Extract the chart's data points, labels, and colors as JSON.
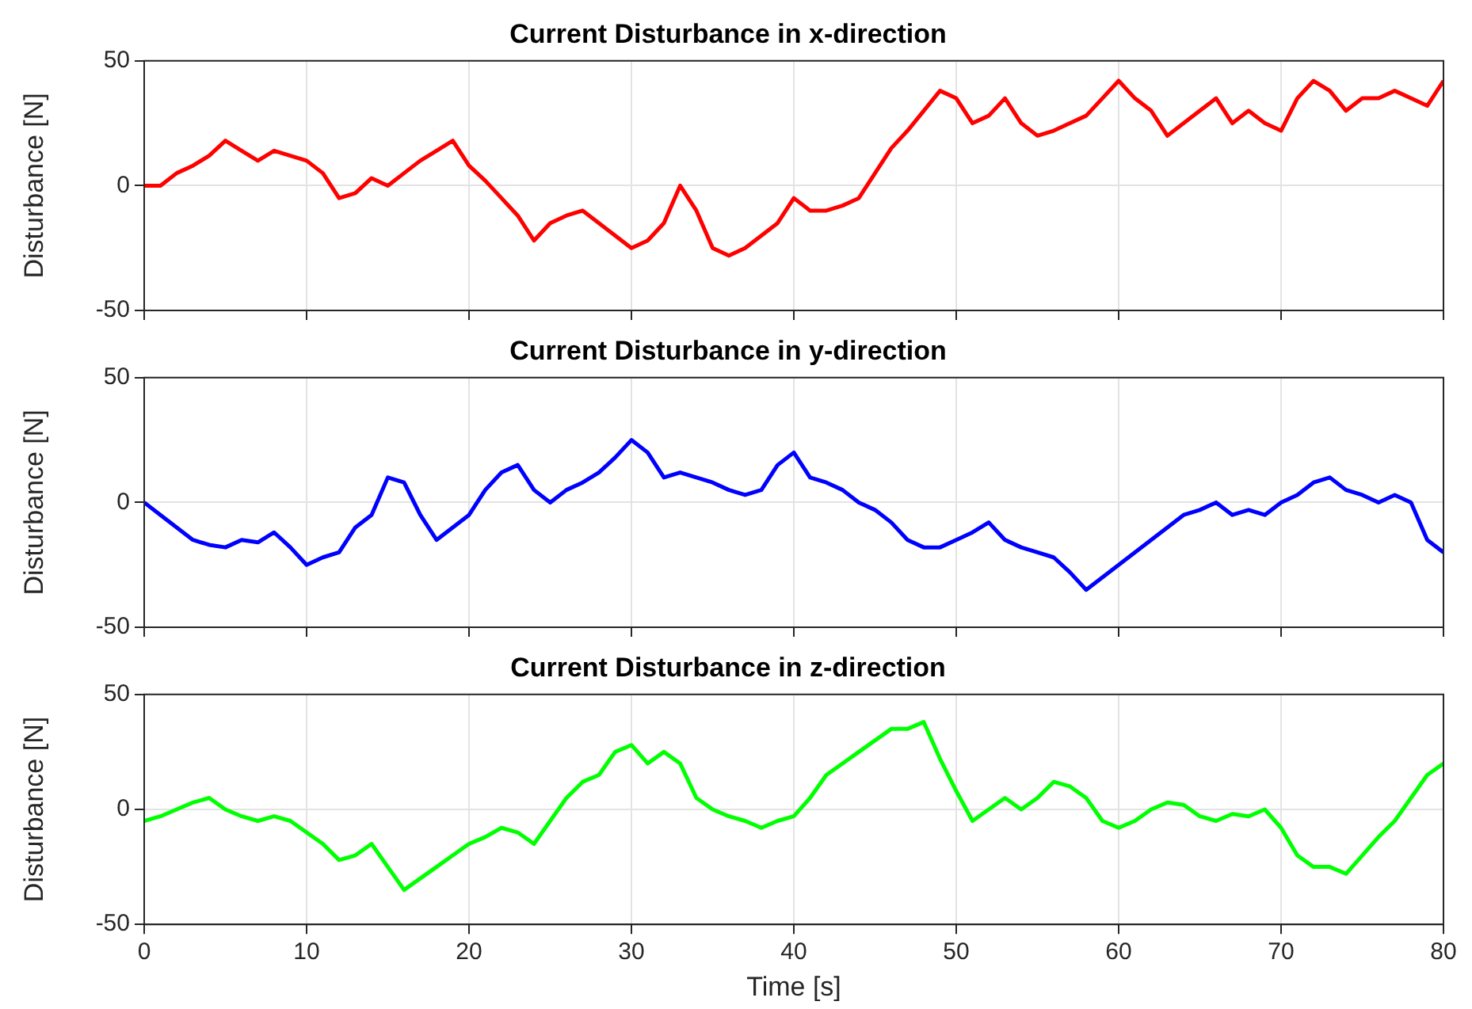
{
  "chart_data": [
    {
      "type": "line",
      "title": "Current Disturbance in x-direction",
      "ylabel": "Disturbance [N]",
      "x": [
        0,
        1,
        2,
        3,
        4,
        5,
        6,
        7,
        8,
        9,
        10,
        11,
        12,
        13,
        14,
        15,
        16,
        17,
        18,
        19,
        20,
        21,
        22,
        23,
        24,
        25,
        26,
        27,
        28,
        29,
        30,
        31,
        32,
        33,
        34,
        35,
        36,
        37,
        38,
        39,
        40,
        41,
        42,
        43,
        44,
        45,
        46,
        47,
        48,
        49,
        50,
        51,
        52,
        53,
        54,
        55,
        56,
        57,
        58,
        59,
        60,
        61,
        62,
        63,
        64,
        65,
        66,
        67,
        68,
        69,
        70,
        71,
        72,
        73,
        74,
        75,
        76,
        77,
        78,
        79,
        80
      ],
      "series": [
        {
          "color": "#ff0000",
          "values": [
            0,
            0,
            5,
            8,
            12,
            18,
            14,
            10,
            14,
            12,
            10,
            5,
            -5,
            -3,
            3,
            0,
            5,
            10,
            14,
            18,
            8,
            2,
            -5,
            -12,
            -22,
            -15,
            -12,
            -10,
            -15,
            -20,
            -25,
            -22,
            -15,
            0,
            -10,
            -25,
            -28,
            -25,
            -20,
            -15,
            -5,
            -10,
            -10,
            -8,
            -5,
            5,
            15,
            22,
            30,
            38,
            35,
            25,
            28,
            35,
            25,
            20,
            22,
            25,
            28,
            35,
            42,
            35,
            30,
            20,
            25,
            30,
            35,
            25,
            30,
            25,
            22,
            35,
            42,
            38,
            30,
            35,
            35,
            38,
            35,
            32,
            42
          ]
        }
      ],
      "xlim": [
        0,
        80
      ],
      "xticks": [
        0,
        10,
        20,
        30,
        40,
        50,
        60,
        70,
        80
      ],
      "ylim": [
        -50,
        50
      ],
      "yticks": [
        -50,
        0,
        50
      ],
      "grid": true,
      "tick_labels": "y"
    },
    {
      "type": "line",
      "title": "Current Disturbance in y-direction",
      "ylabel": "Disturbance [N]",
      "x": [
        0,
        1,
        2,
        3,
        4,
        5,
        6,
        7,
        8,
        9,
        10,
        11,
        12,
        13,
        14,
        15,
        16,
        17,
        18,
        19,
        20,
        21,
        22,
        23,
        24,
        25,
        26,
        27,
        28,
        29,
        30,
        31,
        32,
        33,
        34,
        35,
        36,
        37,
        38,
        39,
        40,
        41,
        42,
        43,
        44,
        45,
        46,
        47,
        48,
        49,
        50,
        51,
        52,
        53,
        54,
        55,
        56,
        57,
        58,
        59,
        60,
        61,
        62,
        63,
        64,
        65,
        66,
        67,
        68,
        69,
        70,
        71,
        72,
        73,
        74,
        75,
        76,
        77,
        78,
        79,
        80
      ],
      "series": [
        {
          "color": "#0000ff",
          "values": [
            0,
            -5,
            -10,
            -15,
            -17,
            -18,
            -15,
            -16,
            -12,
            -18,
            -25,
            -22,
            -20,
            -10,
            -5,
            10,
            8,
            -5,
            -15,
            -10,
            -5,
            5,
            12,
            15,
            5,
            0,
            5,
            8,
            12,
            18,
            25,
            20,
            10,
            12,
            10,
            8,
            5,
            3,
            5,
            15,
            20,
            10,
            8,
            5,
            0,
            -3,
            -8,
            -15,
            -18,
            -18,
            -15,
            -12,
            -8,
            -15,
            -18,
            -20,
            -22,
            -28,
            -35,
            -30,
            -25,
            -20,
            -15,
            -10,
            -5,
            -3,
            0,
            -5,
            -3,
            -5,
            0,
            3,
            8,
            10,
            5,
            3,
            0,
            3,
            0,
            -15,
            -20
          ]
        }
      ],
      "xlim": [
        0,
        80
      ],
      "xticks": [
        0,
        10,
        20,
        30,
        40,
        50,
        60,
        70,
        80
      ],
      "ylim": [
        -50,
        50
      ],
      "yticks": [
        -50,
        0,
        50
      ],
      "grid": true,
      "tick_labels": "y"
    },
    {
      "type": "line",
      "title": "Current Disturbance in z-direction",
      "xlabel": "Time [s]",
      "ylabel": "Disturbance [N]",
      "x": [
        0,
        1,
        2,
        3,
        4,
        5,
        6,
        7,
        8,
        9,
        10,
        11,
        12,
        13,
        14,
        15,
        16,
        17,
        18,
        19,
        20,
        21,
        22,
        23,
        24,
        25,
        26,
        27,
        28,
        29,
        30,
        31,
        32,
        33,
        34,
        35,
        36,
        37,
        38,
        39,
        40,
        41,
        42,
        43,
        44,
        45,
        46,
        47,
        48,
        49,
        50,
        51,
        52,
        53,
        54,
        55,
        56,
        57,
        58,
        59,
        60,
        61,
        62,
        63,
        64,
        65,
        66,
        67,
        68,
        69,
        70,
        71,
        72,
        73,
        74,
        75,
        76,
        77,
        78,
        79,
        80
      ],
      "series": [
        {
          "color": "#00ff00",
          "values": [
            -5,
            -3,
            0,
            3,
            5,
            0,
            -3,
            -5,
            -3,
            -5,
            -10,
            -15,
            -22,
            -20,
            -15,
            -25,
            -35,
            -30,
            -25,
            -20,
            -15,
            -12,
            -8,
            -10,
            -15,
            -5,
            5,
            12,
            15,
            25,
            28,
            20,
            25,
            20,
            5,
            0,
            -3,
            -5,
            -8,
            -5,
            -3,
            5,
            15,
            20,
            25,
            30,
            35,
            35,
            38,
            22,
            8,
            -5,
            0,
            5,
            0,
            5,
            12,
            10,
            5,
            -5,
            -8,
            -5,
            0,
            3,
            2,
            -3,
            -5,
            -2,
            -3,
            0,
            -8,
            -20,
            -25,
            -25,
            -28,
            -20,
            -12,
            -5,
            5,
            15,
            20
          ]
        }
      ],
      "xlim": [
        0,
        80
      ],
      "xticks": [
        0,
        10,
        20,
        30,
        40,
        50,
        60,
        70,
        80
      ],
      "ylim": [
        -50,
        50
      ],
      "yticks": [
        -50,
        0,
        50
      ],
      "grid": true
    }
  ]
}
